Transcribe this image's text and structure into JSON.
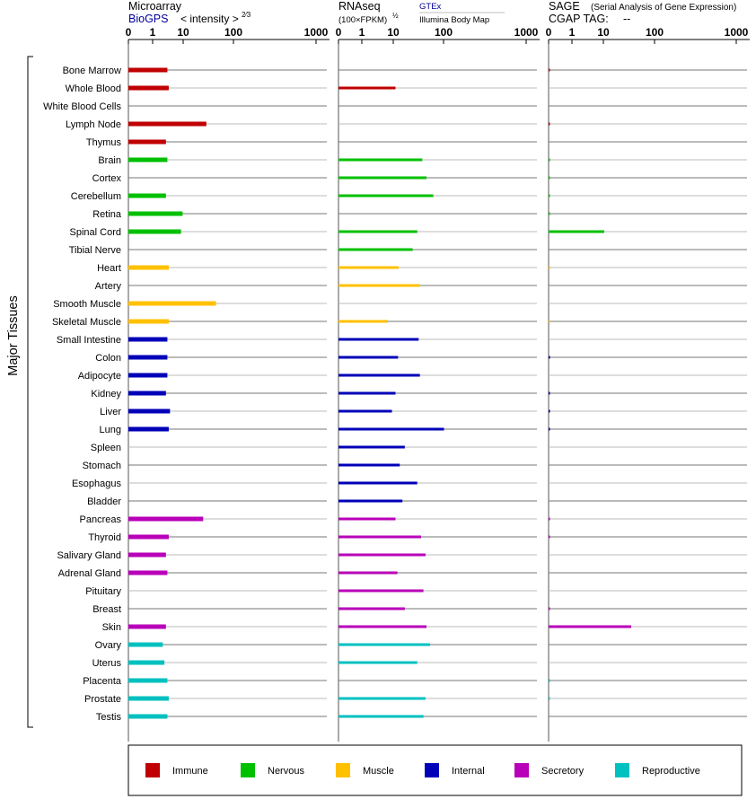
{
  "panels": {
    "microarray": {
      "title": "Microarray",
      "source": "BioGPS",
      "intensity_label": "< intensity >",
      "exponent": "2⁄3"
    },
    "rnaseq": {
      "title": "RNAseq",
      "units": "(100×FPKM)",
      "exponent": "½",
      "source": "GTEx",
      "source_sub": "Illumina Body Map"
    },
    "sage": {
      "title": "SAGE",
      "title_note": "(Serial Analysis of Gene Expression)",
      "tag_label": "CGAP TAG:",
      "tag_value": "--"
    }
  },
  "y_group_label": "Major Tissues",
  "legend": [
    {
      "label": "Immune",
      "color": "#c00000"
    },
    {
      "label": "Nervous",
      "color": "#00c000"
    },
    {
      "label": "Muscle",
      "color": "#ffc000"
    },
    {
      "label": "Internal",
      "color": "#0000b8"
    },
    {
      "label": "Secretory",
      "color": "#b800b8"
    },
    {
      "label": "Reproductive",
      "color": "#00c0c0"
    }
  ],
  "chart_data": {
    "type": "bar",
    "orientation": "horizontal",
    "x_ticks": [
      "0",
      "1",
      "10",
      "100",
      "1000"
    ],
    "xlim": [
      0,
      1000
    ],
    "categories": [
      "Bone Marrow",
      "Whole Blood",
      "White Blood Cells",
      "Lymph Node",
      "Thymus",
      "Brain",
      "Cortex",
      "Cerebellum",
      "Retina",
      "Spinal Cord",
      "Tibial Nerve",
      "Heart",
      "Artery",
      "Smooth Muscle",
      "Skeletal Muscle",
      "Small Intestine",
      "Colon",
      "Adipocyte",
      "Kidney",
      "Liver",
      "Lung",
      "Spleen",
      "Stomach",
      "Esophagus",
      "Bladder",
      "Pancreas",
      "Thyroid",
      "Salivary Gland",
      "Adrenal Gland",
      "Pituitary",
      "Breast",
      "Skin",
      "Ovary",
      "Uterus",
      "Placenta",
      "Prostate",
      "Testis"
    ],
    "category_groups": [
      "Immune",
      "Immune",
      "Immune",
      "Immune",
      "Immune",
      "Nervous",
      "Nervous",
      "Nervous",
      "Nervous",
      "Nervous",
      "Nervous",
      "Muscle",
      "Muscle",
      "Muscle",
      "Muscle",
      "Internal",
      "Internal",
      "Internal",
      "Internal",
      "Internal",
      "Internal",
      "Internal",
      "Internal",
      "Internal",
      "Internal",
      "Secretory",
      "Secretory",
      "Secretory",
      "Secretory",
      "Secretory",
      "Secretory",
      "Secretory",
      "Reproductive",
      "Reproductive",
      "Reproductive",
      "Reproductive",
      "Reproductive"
    ],
    "series": [
      {
        "name": "Microarray",
        "values": [
          1.8,
          1.9,
          null,
          8.5,
          1.7,
          1.8,
          null,
          1.7,
          3.3,
          3.1,
          null,
          1.9,
          null,
          12.5,
          1.9,
          1.8,
          1.8,
          1.8,
          1.7,
          2.0,
          1.9,
          null,
          null,
          null,
          null,
          7.5,
          1.9,
          1.7,
          1.8,
          null,
          null,
          1.7,
          1.5,
          1.6,
          1.8,
          1.9,
          1.8
        ]
      },
      {
        "name": "RNAseq",
        "values": [
          0,
          3.8,
          0,
          0,
          0,
          11,
          13,
          17,
          0,
          9,
          7.5,
          4.3,
          10,
          0,
          2.8,
          9.5,
          4.2,
          10,
          3.8,
          3.3,
          26,
          5.5,
          4.5,
          9,
          5,
          3.8,
          10.5,
          12.5,
          4.1,
          11.5,
          5.5,
          13,
          15,
          9,
          0,
          12.5,
          11.5
        ]
      },
      {
        "name": "SAGE",
        "values": [
          0.05,
          0,
          0,
          0.05,
          0,
          0.05,
          0.05,
          0.05,
          0.05,
          3.6,
          0,
          0.03,
          0,
          0,
          0.03,
          0,
          0.06,
          0,
          0.05,
          0.06,
          0.05,
          0,
          0,
          0,
          0,
          0.05,
          0.05,
          0,
          0,
          0,
          0.05,
          10.5,
          0,
          0,
          0.05,
          0.05,
          0
        ]
      }
    ]
  }
}
